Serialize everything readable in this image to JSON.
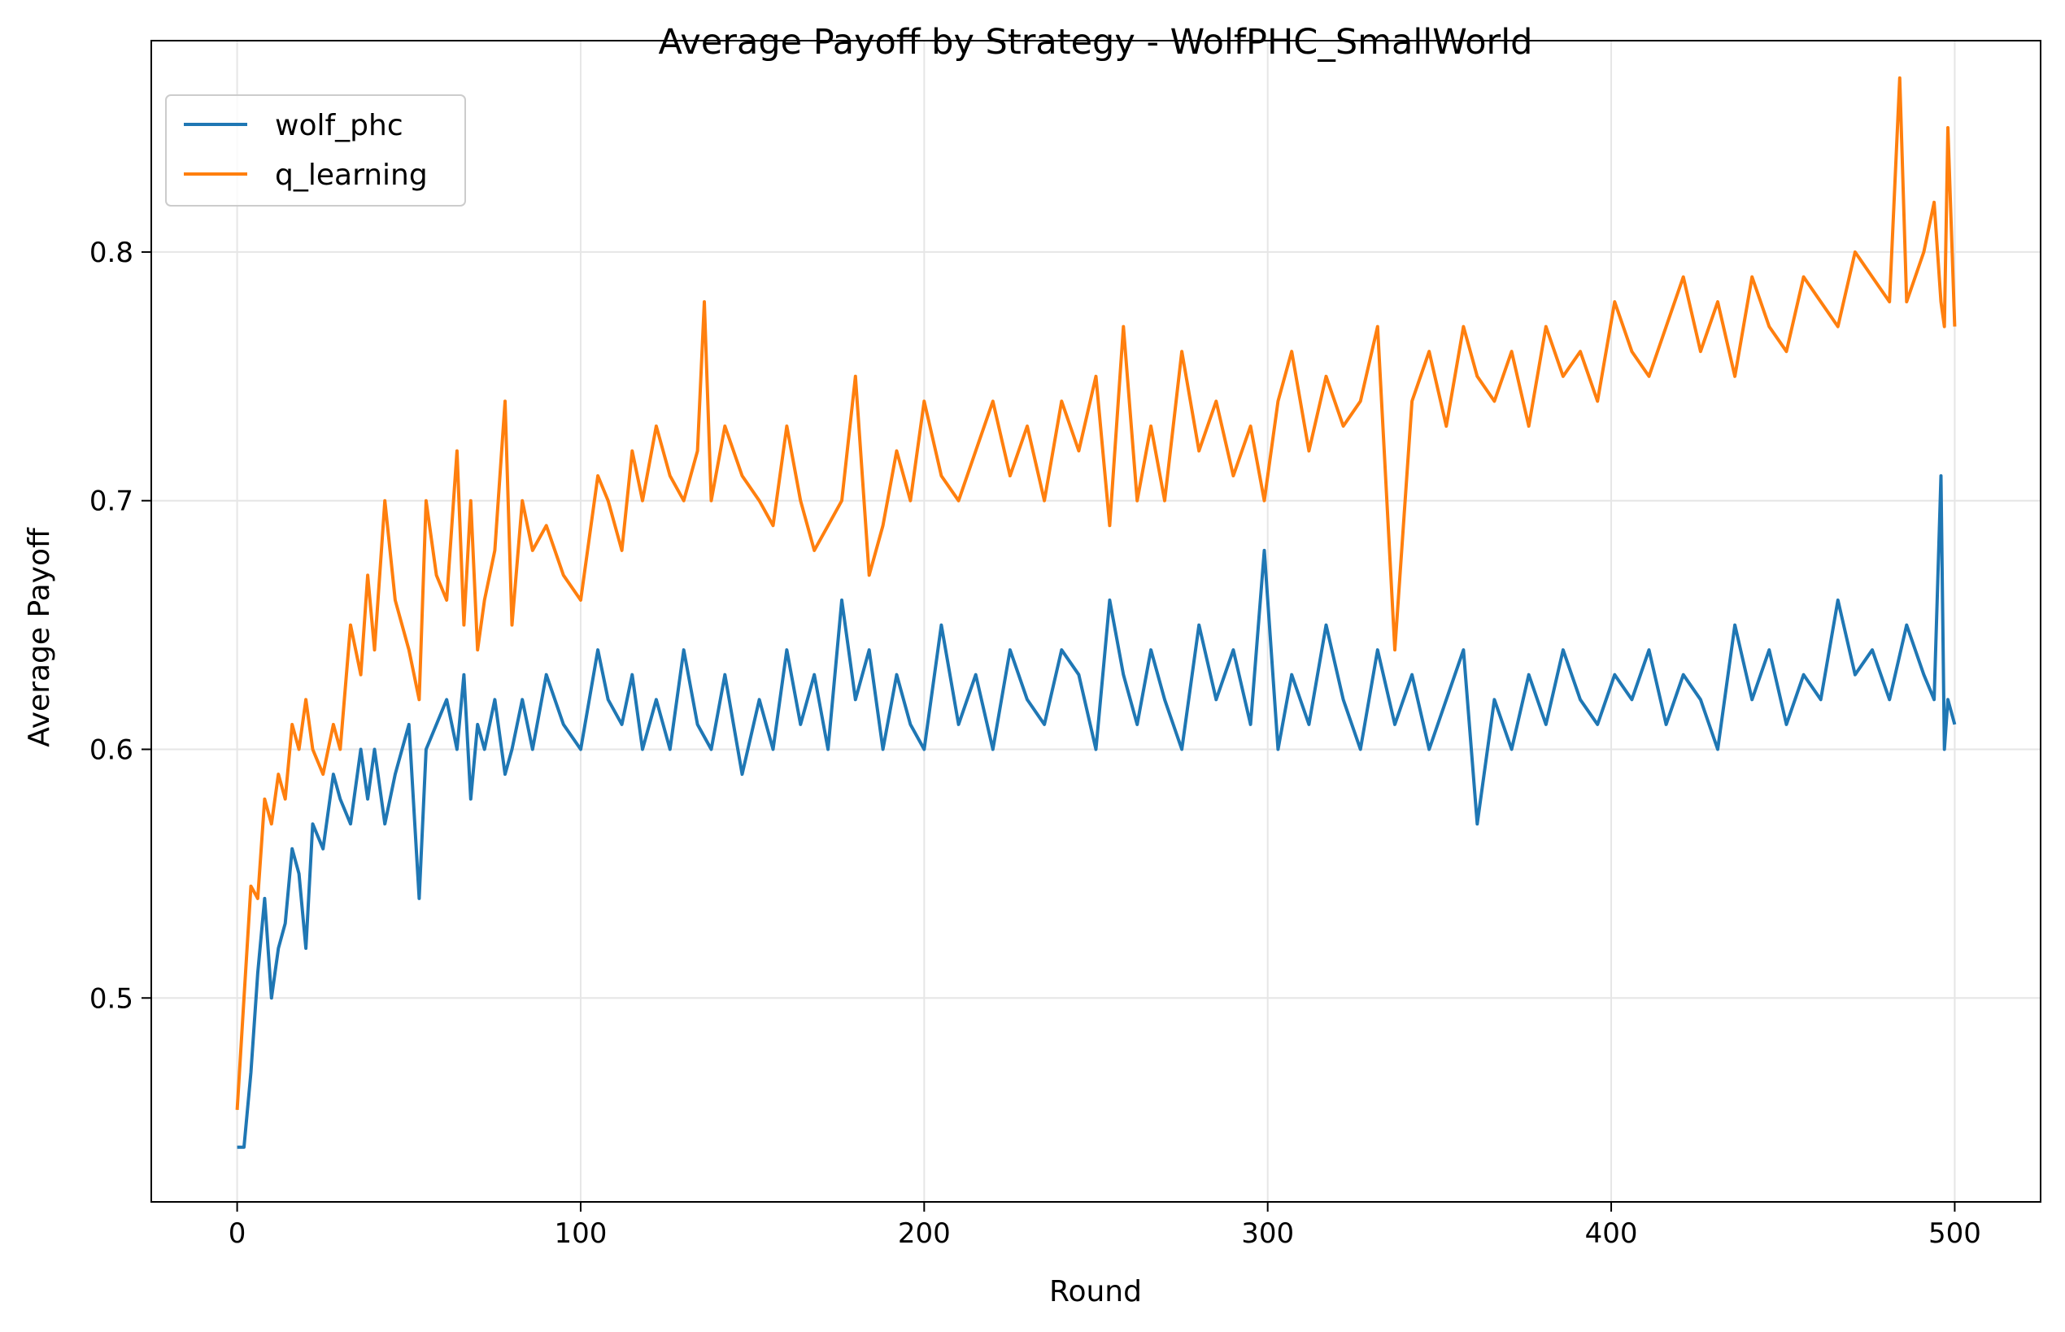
{
  "chart_data": {
    "type": "line",
    "title": "Average Payoff by Strategy - WolfPHC_SmallWorld",
    "xlabel": "Round",
    "ylabel": "Average Payoff",
    "xlim": [
      -25,
      525
    ],
    "ylim": [
      0.418,
      0.885
    ],
    "xticks": [
      0,
      100,
      200,
      300,
      400,
      500
    ],
    "yticks": [
      0.5,
      0.6,
      0.7,
      0.8
    ],
    "grid": true,
    "legend_position": "top-left",
    "series": [
      {
        "name": "wolf_phc",
        "color": "#1f77b4",
        "x": [
          0,
          2,
          4,
          6,
          8,
          10,
          12,
          14,
          16,
          18,
          20,
          22,
          25,
          28,
          30,
          33,
          36,
          38,
          40,
          43,
          46,
          50,
          53,
          55,
          58,
          61,
          64,
          66,
          68,
          70,
          72,
          75,
          78,
          80,
          83,
          86,
          90,
          95,
          100,
          105,
          108,
          112,
          115,
          118,
          122,
          126,
          130,
          134,
          138,
          142,
          147,
          152,
          156,
          160,
          164,
          168,
          172,
          176,
          180,
          184,
          188,
          192,
          196,
          200,
          205,
          210,
          215,
          220,
          225,
          230,
          235,
          240,
          245,
          250,
          254,
          258,
          262,
          266,
          270,
          275,
          280,
          285,
          290,
          295,
          299,
          303,
          307,
          312,
          317,
          322,
          327,
          332,
          337,
          342,
          347,
          352,
          357,
          361,
          366,
          371,
          376,
          381,
          386,
          391,
          396,
          401,
          406,
          411,
          416,
          421,
          426,
          431,
          436,
          441,
          446,
          451,
          456,
          461,
          466,
          471,
          476,
          481,
          486,
          491,
          494,
          496,
          497,
          498,
          500
        ],
        "values": [
          0.44,
          0.44,
          0.47,
          0.51,
          0.54,
          0.5,
          0.52,
          0.53,
          0.56,
          0.55,
          0.52,
          0.57,
          0.56,
          0.59,
          0.58,
          0.57,
          0.6,
          0.58,
          0.6,
          0.57,
          0.59,
          0.61,
          0.54,
          0.6,
          0.61,
          0.62,
          0.6,
          0.63,
          0.58,
          0.61,
          0.6,
          0.62,
          0.59,
          0.6,
          0.62,
          0.6,
          0.63,
          0.61,
          0.6,
          0.64,
          0.62,
          0.61,
          0.63,
          0.6,
          0.62,
          0.6,
          0.64,
          0.61,
          0.6,
          0.63,
          0.59,
          0.62,
          0.6,
          0.64,
          0.61,
          0.63,
          0.6,
          0.66,
          0.62,
          0.64,
          0.6,
          0.63,
          0.61,
          0.6,
          0.65,
          0.61,
          0.63,
          0.6,
          0.64,
          0.62,
          0.61,
          0.64,
          0.63,
          0.6,
          0.66,
          0.63,
          0.61,
          0.64,
          0.62,
          0.6,
          0.65,
          0.62,
          0.64,
          0.61,
          0.68,
          0.6,
          0.63,
          0.61,
          0.65,
          0.62,
          0.6,
          0.64,
          0.61,
          0.63,
          0.6,
          0.62,
          0.64,
          0.57,
          0.62,
          0.6,
          0.63,
          0.61,
          0.64,
          0.62,
          0.61,
          0.63,
          0.62,
          0.64,
          0.61,
          0.63,
          0.62,
          0.6,
          0.65,
          0.62,
          0.64,
          0.61,
          0.63,
          0.62,
          0.66,
          0.63,
          0.64,
          0.62,
          0.65,
          0.63,
          0.62,
          0.71,
          0.6,
          0.62,
          0.61
        ]
      },
      {
        "name": "q_learning",
        "color": "#ff7f0e",
        "x": [
          0,
          2,
          4,
          6,
          8,
          10,
          12,
          14,
          16,
          18,
          20,
          22,
          25,
          28,
          30,
          33,
          36,
          38,
          40,
          43,
          46,
          50,
          53,
          55,
          58,
          61,
          64,
          66,
          68,
          70,
          72,
          75,
          78,
          80,
          83,
          86,
          90,
          95,
          100,
          105,
          108,
          112,
          115,
          118,
          122,
          126,
          130,
          134,
          136,
          138,
          142,
          147,
          152,
          156,
          160,
          164,
          168,
          172,
          176,
          180,
          184,
          188,
          192,
          196,
          200,
          205,
          210,
          215,
          220,
          225,
          230,
          235,
          240,
          245,
          250,
          254,
          258,
          262,
          266,
          270,
          275,
          280,
          285,
          290,
          295,
          299,
          303,
          307,
          312,
          317,
          322,
          327,
          332,
          337,
          342,
          347,
          352,
          357,
          361,
          366,
          371,
          376,
          381,
          386,
          391,
          396,
          401,
          406,
          411,
          416,
          421,
          426,
          431,
          436,
          441,
          446,
          451,
          456,
          461,
          466,
          471,
          476,
          481,
          484,
          486,
          491,
          494,
          496,
          497,
          498,
          500
        ],
        "values": [
          0.455,
          0.5,
          0.545,
          0.54,
          0.58,
          0.57,
          0.59,
          0.58,
          0.61,
          0.6,
          0.62,
          0.6,
          0.59,
          0.61,
          0.6,
          0.65,
          0.63,
          0.67,
          0.64,
          0.7,
          0.66,
          0.64,
          0.62,
          0.7,
          0.67,
          0.66,
          0.72,
          0.65,
          0.7,
          0.64,
          0.66,
          0.68,
          0.74,
          0.65,
          0.7,
          0.68,
          0.69,
          0.67,
          0.66,
          0.71,
          0.7,
          0.68,
          0.72,
          0.7,
          0.73,
          0.71,
          0.7,
          0.72,
          0.78,
          0.7,
          0.73,
          0.71,
          0.7,
          0.69,
          0.73,
          0.7,
          0.68,
          0.69,
          0.7,
          0.75,
          0.67,
          0.69,
          0.72,
          0.7,
          0.74,
          0.71,
          0.7,
          0.72,
          0.74,
          0.71,
          0.73,
          0.7,
          0.74,
          0.72,
          0.75,
          0.69,
          0.77,
          0.7,
          0.73,
          0.7,
          0.76,
          0.72,
          0.74,
          0.71,
          0.73,
          0.7,
          0.74,
          0.76,
          0.72,
          0.75,
          0.73,
          0.74,
          0.77,
          0.64,
          0.74,
          0.76,
          0.73,
          0.77,
          0.75,
          0.74,
          0.76,
          0.73,
          0.77,
          0.75,
          0.76,
          0.74,
          0.78,
          0.76,
          0.75,
          0.77,
          0.79,
          0.76,
          0.78,
          0.75,
          0.79,
          0.77,
          0.76,
          0.79,
          0.78,
          0.77,
          0.8,
          0.79,
          0.78,
          0.87,
          0.78,
          0.8,
          0.82,
          0.78,
          0.77,
          0.85,
          0.77
        ]
      }
    ]
  }
}
